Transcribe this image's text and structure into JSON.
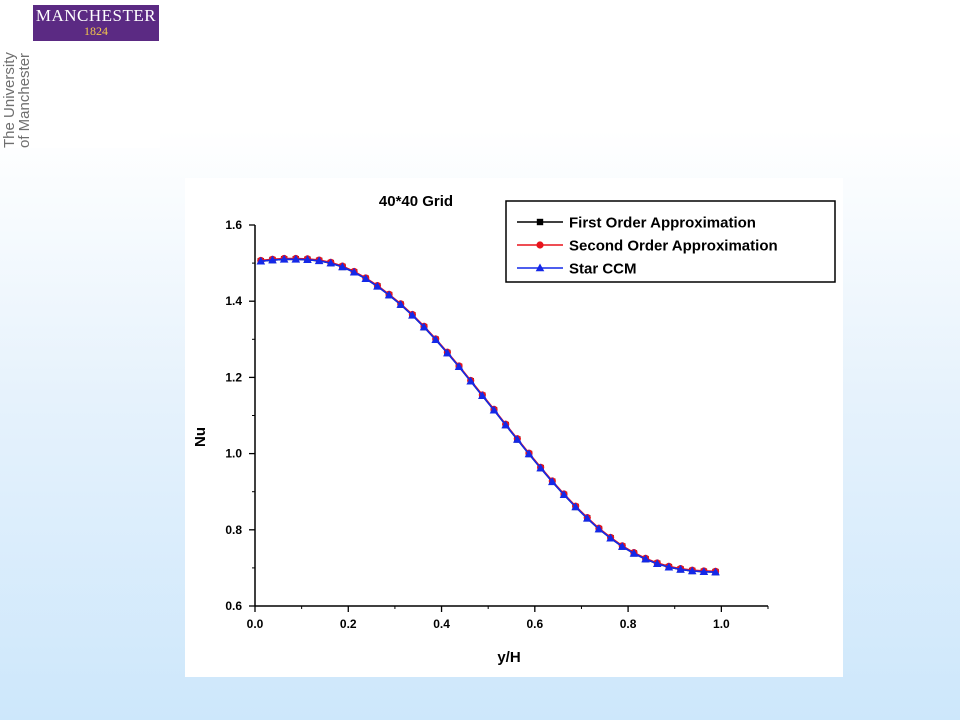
{
  "logo": {
    "wordmark": "MANCHESTER",
    "year": "1824",
    "name_line1": "The University",
    "name_line2": "of Manchester",
    "colors": {
      "box": "#5b2a83",
      "year": "#f3c64b"
    }
  },
  "chart_data": {
    "type": "line",
    "title": "40*40 Grid",
    "xlabel": "y/H",
    "ylabel": "Nu",
    "xlim": [
      0.0,
      1.1
    ],
    "ylim": [
      0.6,
      1.6
    ],
    "xticks": [
      "0.0",
      "0.2",
      "0.4",
      "0.6",
      "0.8",
      "1.0"
    ],
    "yticks": [
      "0.6",
      "0.8",
      "1.0",
      "1.2",
      "1.4",
      "1.6"
    ],
    "grid": false,
    "legend_position": "top-right",
    "x": [
      0.0125,
      0.0375,
      0.0625,
      0.0875,
      0.1125,
      0.1375,
      0.1625,
      0.1875,
      0.2125,
      0.2375,
      0.2625,
      0.2875,
      0.3125,
      0.3375,
      0.3625,
      0.3875,
      0.4125,
      0.4375,
      0.4625,
      0.4875,
      0.5125,
      0.5375,
      0.5625,
      0.5875,
      0.6125,
      0.6375,
      0.6625,
      0.6875,
      0.7125,
      0.7375,
      0.7625,
      0.7875,
      0.8125,
      0.8375,
      0.8625,
      0.8875,
      0.9125,
      0.9375,
      0.9625,
      0.9875
    ],
    "series": [
      {
        "name": "First Order Approximation",
        "marker": "square",
        "color": "#000000",
        "values": [
          1.505,
          1.508,
          1.51,
          1.51,
          1.509,
          1.506,
          1.5,
          1.49,
          1.476,
          1.459,
          1.439,
          1.416,
          1.391,
          1.363,
          1.332,
          1.299,
          1.264,
          1.228,
          1.19,
          1.152,
          1.114,
          1.075,
          1.037,
          0.999,
          0.962,
          0.926,
          0.892,
          0.86,
          0.83,
          0.802,
          0.778,
          0.756,
          0.738,
          0.723,
          0.711,
          0.702,
          0.696,
          0.692,
          0.69,
          0.689
        ]
      },
      {
        "name": "Second Order Approximation",
        "marker": "circle",
        "color": "#e8141c",
        "values": [
          1.507,
          1.51,
          1.512,
          1.512,
          1.511,
          1.508,
          1.502,
          1.492,
          1.478,
          1.461,
          1.441,
          1.418,
          1.393,
          1.365,
          1.334,
          1.301,
          1.266,
          1.23,
          1.192,
          1.154,
          1.116,
          1.077,
          1.039,
          1.001,
          0.964,
          0.928,
          0.894,
          0.862,
          0.832,
          0.804,
          0.78,
          0.758,
          0.74,
          0.725,
          0.713,
          0.704,
          0.698,
          0.694,
          0.692,
          0.691
        ]
      },
      {
        "name": "Star CCM",
        "marker": "triangle",
        "color": "#1428e8",
        "values": [
          1.505,
          1.508,
          1.51,
          1.51,
          1.509,
          1.506,
          1.5,
          1.49,
          1.476,
          1.459,
          1.439,
          1.416,
          1.391,
          1.363,
          1.332,
          1.299,
          1.264,
          1.228,
          1.19,
          1.152,
          1.114,
          1.075,
          1.037,
          0.999,
          0.962,
          0.926,
          0.892,
          0.86,
          0.83,
          0.802,
          0.778,
          0.756,
          0.738,
          0.723,
          0.711,
          0.702,
          0.696,
          0.692,
          0.69,
          0.689
        ]
      }
    ]
  }
}
